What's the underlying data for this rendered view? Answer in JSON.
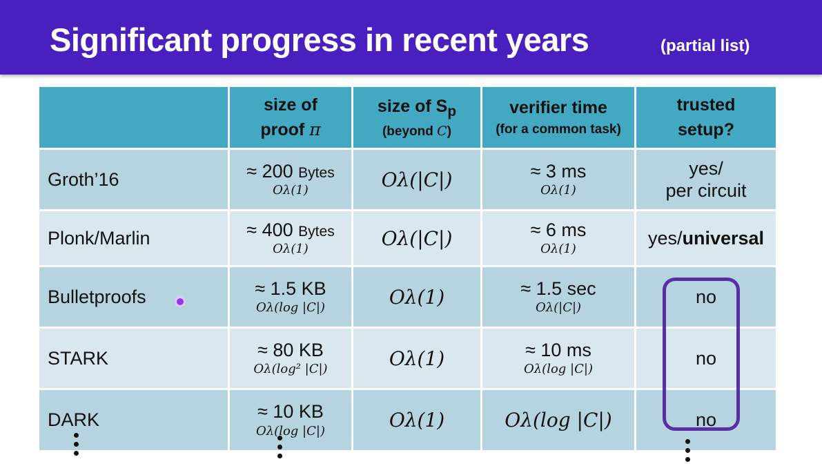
{
  "slide": {
    "title": "Significant progress in recent years",
    "title_note": "(partial list)"
  },
  "table": {
    "headers": {
      "proof_size": {
        "line1": "size of",
        "line2": "proof",
        "symbol": "π"
      },
      "sp_size": {
        "line1": "size of S",
        "subscript": "p",
        "line2": "(beyond ",
        "symbol": "C",
        "close": ")"
      },
      "verifier_time": {
        "line1": "verifier time",
        "line2": "(for a common task)"
      },
      "trusted_setup": {
        "line1": "trusted",
        "line2": "setup?"
      }
    },
    "rows": [
      {
        "name": "Groth’16",
        "proof_size": "≈ 200",
        "proof_unit": "Bytes",
        "proof_asym": "Oλ(1)",
        "sp_size": "Oλ(|C|)",
        "verifier_time": "≈ 3 ms",
        "verifier_asym": "Oλ(1)",
        "setup_line1": "yes/",
        "setup_line2": "per circuit"
      },
      {
        "name": "Plonk/Marlin",
        "proof_size": "≈ 400",
        "proof_unit": "Bytes",
        "proof_asym": "Oλ(1)",
        "sp_size": "Oλ(|C|)",
        "verifier_time": "≈ 6 ms",
        "verifier_asym": "Oλ(1)",
        "setup_prefix": "yes/",
        "setup_bold": "universal"
      },
      {
        "name": "Bulletproofs",
        "proof_size": "≈ 1.5 KB",
        "proof_asym": "Oλ(log |C|)",
        "sp_size": "Oλ(1)",
        "verifier_time": "≈ 1.5 sec",
        "verifier_asym": "Oλ(|C|)",
        "setup": "no"
      },
      {
        "name": "STARK",
        "proof_size": "≈ 80 KB",
        "proof_asym": "Oλ(log² |C|)",
        "sp_size": "Oλ(1)",
        "verifier_time": "≈ 10 ms",
        "verifier_asym": "Oλ(log |C|)",
        "setup": "no"
      },
      {
        "name": "DARK",
        "proof_size": "≈ 10 KB",
        "proof_asym": "Oλ(log |C|)",
        "sp_size": "Oλ(1)",
        "verifier_time": "Oλ(log |C|)",
        "setup": "no"
      }
    ]
  },
  "colors": {
    "title_bar": "#4a1fbf",
    "header": "#43a9c2",
    "row_dark": "#b5d4df",
    "row_light": "#d9e8ee",
    "highlight": "#5a2fa5"
  }
}
